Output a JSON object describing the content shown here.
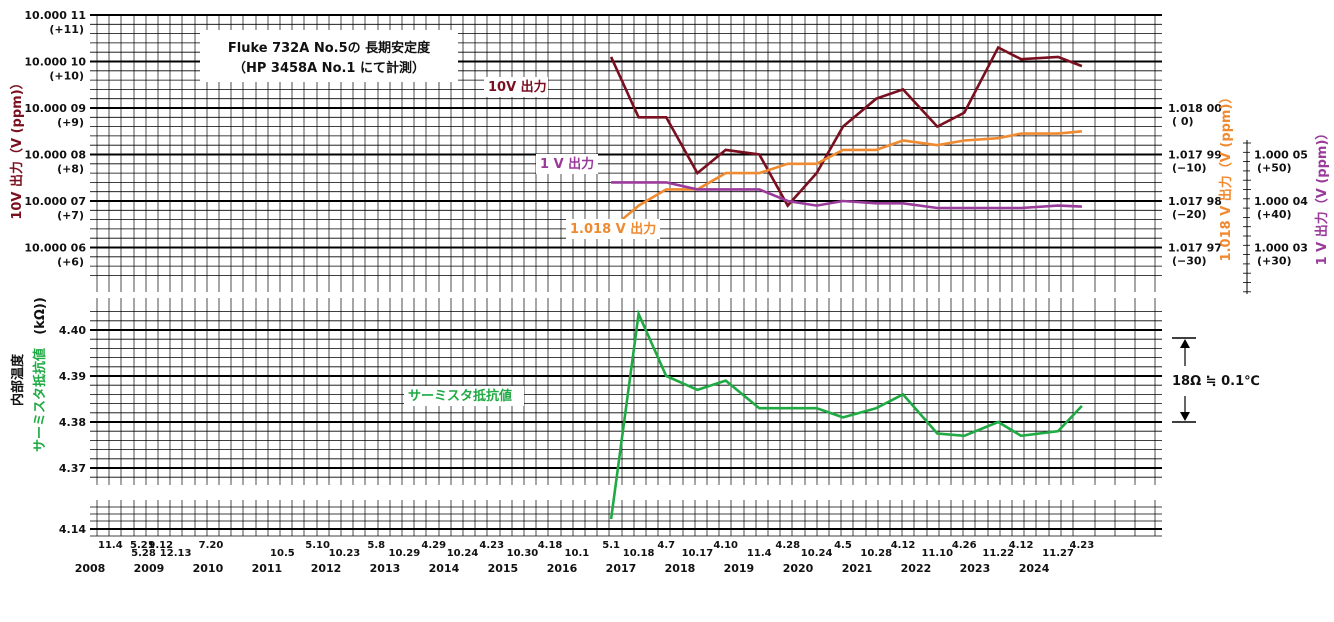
{
  "title": {
    "line1": "Fluke 732A  No.5の 長期安定度",
    "line2": "（HP 3458A No.1 にて計測）"
  },
  "colors": {
    "v10": "#7a0f1f",
    "v1018": "#f08a30",
    "v1": "#9a3a9a",
    "therm": "#1faa44",
    "grid": "#000000"
  },
  "labels": {
    "v10_series": "10V 出力",
    "v1_series": "1 V 出力",
    "v1018_series": "1.018 V 出力",
    "therm_series": "サーミスタ抵抗値",
    "left_axis_v10": "10V 出力（V (ppm)）",
    "left_axis_temp": "内部温度",
    "left_axis_therm": "サーミスタ抵抗値",
    "therm_unit": "(kΩ))",
    "right_axis_v1018": "1.018 V 出力（V (ppm)）",
    "right_axis_v1": "1 V 出力（V (ppm)）",
    "resolution_note": "18Ω ≒ 0.1℃"
  },
  "chart_data": [
    {
      "type": "line",
      "name": "voltage",
      "left_ticks": [
        {
          "v": 11,
          "main": "10.000 11",
          "sub": "(+11)"
        },
        {
          "v": 10,
          "main": "10.000 10",
          "sub": "(+10)"
        },
        {
          "v": 9,
          "main": "10.000 09",
          "sub": "(+9)"
        },
        {
          "v": 8,
          "main": "10.000 08",
          "sub": "(+8)"
        },
        {
          "v": 7,
          "main": "10.000 07",
          "sub": "(+7)"
        },
        {
          "v": 6,
          "main": "10.000 06",
          "sub": "(+6)"
        }
      ],
      "right_ticks_1018": [
        {
          "v": 9,
          "main": "1.018 00",
          "sub": "(    0)"
        },
        {
          "v": 8,
          "main": "1.017 99",
          "sub": "(−10)"
        },
        {
          "v": 7,
          "main": "1.017 98",
          "sub": "(−20)"
        },
        {
          "v": 6,
          "main": "1.017 97",
          "sub": "(−30)"
        }
      ],
      "right_ticks_1": [
        {
          "v": 8,
          "main": "1.000 05",
          "sub": "(+50)"
        },
        {
          "v": 7,
          "main": "1.000 04",
          "sub": "(+40)"
        },
        {
          "v": 6,
          "main": "1.000 03",
          "sub": "(+30)"
        }
      ],
      "series": [
        {
          "key": "v10",
          "x": [
            "2017-05-01",
            "2017-10-18",
            "2018-04-07",
            "2018-10-17",
            "2019-04-10",
            "2019-11-04",
            "2020-04-28",
            "2020-10-24",
            "2021-04-05",
            "2021-10-28",
            "2022-04-12",
            "2022-11-10",
            "2023-04-26",
            "2023-11-22",
            "2024-04-12",
            "2024-11-27",
            "2025-04-23"
          ],
          "y": [
            10.1,
            8.8,
            8.8,
            7.6,
            8.1,
            8.0,
            6.9,
            7.6,
            8.6,
            9.2,
            9.4,
            8.6,
            8.9,
            10.3,
            10.05,
            10.1,
            9.9
          ]
        },
        {
          "key": "v1018",
          "x": [
            "2017-05-01",
            "2017-10-18",
            "2018-04-07",
            "2018-10-17",
            "2019-04-10",
            "2019-11-04",
            "2020-04-28",
            "2020-10-24",
            "2021-04-05",
            "2021-10-28",
            "2022-04-12",
            "2022-11-10",
            "2023-04-26",
            "2023-11-22",
            "2024-04-12",
            "2024-11-27",
            "2025-04-23"
          ],
          "y": [
            6.4,
            6.9,
            7.25,
            7.25,
            7.6,
            7.6,
            7.8,
            7.8,
            8.1,
            8.1,
            8.3,
            8.2,
            8.3,
            8.35,
            8.45,
            8.45,
            8.5
          ]
        },
        {
          "key": "v1",
          "x": [
            "2017-05-01",
            "2017-10-18",
            "2018-04-07",
            "2018-10-17",
            "2019-04-10",
            "2019-11-04",
            "2020-04-28",
            "2020-10-24",
            "2021-04-05",
            "2021-10-28",
            "2022-04-12",
            "2022-11-10",
            "2023-04-26",
            "2023-11-22",
            "2024-04-12",
            "2024-11-27",
            "2025-04-23"
          ],
          "y": [
            7.4,
            7.4,
            7.4,
            7.25,
            7.25,
            7.25,
            7.0,
            6.9,
            7.0,
            6.95,
            6.95,
            6.85,
            6.85,
            6.85,
            6.85,
            6.9,
            6.88
          ]
        }
      ]
    },
    {
      "type": "line",
      "name": "thermistor",
      "ticks": [
        {
          "v": 4.4,
          "label": "4.40"
        },
        {
          "v": 4.39,
          "label": "4.39"
        },
        {
          "v": 4.38,
          "label": "4.38"
        },
        {
          "v": 4.37,
          "label": "4.37"
        }
      ],
      "low_tick": {
        "v": 4.14,
        "label": "4.14"
      },
      "series": [
        {
          "key": "therm",
          "x": [
            "2017-05-01",
            "2017-10-18",
            "2018-04-07",
            "2018-10-17",
            "2019-04-10",
            "2019-11-04",
            "2020-04-28",
            "2020-10-24",
            "2021-04-05",
            "2021-10-28",
            "2022-04-12",
            "2022-11-10",
            "2023-04-26",
            "2023-11-22",
            "2024-04-12",
            "2024-11-27",
            "2025-04-23"
          ],
          "y": [
            4.143,
            4.4035,
            4.39,
            4.387,
            4.389,
            4.383,
            4.383,
            4.383,
            4.381,
            4.383,
            4.386,
            4.3775,
            4.377,
            4.38,
            4.377,
            4.378,
            4.3835
          ]
        }
      ]
    }
  ],
  "x_axis": {
    "dates": [
      {
        "label": "11.4",
        "d": "2008-11-04",
        "row": 0
      },
      {
        "label": "5.21",
        "d": "2009-05-21",
        "row": 0
      },
      {
        "label": "5.28",
        "d": "2009-05-28",
        "row": 1
      },
      {
        "label": "9.12",
        "d": "2009-09-12",
        "row": 0
      },
      {
        "label": "12.13",
        "d": "2009-12-13",
        "row": 1
      },
      {
        "label": "7.20",
        "d": "2010-07-20",
        "row": 0
      },
      {
        "label": "10.5",
        "d": "2011-10-05",
        "row": 1
      },
      {
        "label": "5.10",
        "d": "2012-05-10",
        "row": 0
      },
      {
        "label": "10.23",
        "d": "2012-10-23",
        "row": 1
      },
      {
        "label": "5.8",
        "d": "2013-05-08",
        "row": 0
      },
      {
        "label": "10.29",
        "d": "2013-10-29",
        "row": 1
      },
      {
        "label": "4.29",
        "d": "2014-04-29",
        "row": 0
      },
      {
        "label": "10.24",
        "d": "2014-10-24",
        "row": 1
      },
      {
        "label": "4.23",
        "d": "2015-04-23",
        "row": 0
      },
      {
        "label": "10.30",
        "d": "2015-10-30",
        "row": 1
      },
      {
        "label": "4.18",
        "d": "2016-04-18",
        "row": 0
      },
      {
        "label": "10.1",
        "d": "2016-10-01",
        "row": 1
      },
      {
        "label": "5.1",
        "d": "2017-05-01",
        "row": 0
      },
      {
        "label": "10.18",
        "d": "2017-10-18",
        "row": 1
      },
      {
        "label": "4.7",
        "d": "2018-04-07",
        "row": 0
      },
      {
        "label": "10.17",
        "d": "2018-10-17",
        "row": 1
      },
      {
        "label": "4.10",
        "d": "2019-04-10",
        "row": 0
      },
      {
        "label": "11.4",
        "d": "2019-11-04",
        "row": 1
      },
      {
        "label": "4.28",
        "d": "2020-04-28",
        "row": 0
      },
      {
        "label": "10.24",
        "d": "2020-10-24",
        "row": 1
      },
      {
        "label": "4.5",
        "d": "2021-04-05",
        "row": 0
      },
      {
        "label": "10.28",
        "d": "2021-10-28",
        "row": 1
      },
      {
        "label": "4.12",
        "d": "2022-04-12",
        "row": 0
      },
      {
        "label": "11.10",
        "d": "2022-11-10",
        "row": 1
      },
      {
        "label": "4.26",
        "d": "2023-04-26",
        "row": 0
      },
      {
        "label": "11.22",
        "d": "2023-11-22",
        "row": 1
      },
      {
        "label": "4.12",
        "d": "2024-04-12",
        "row": 0
      },
      {
        "label": "11.27",
        "d": "2024-11-27",
        "row": 1
      },
      {
        "label": "4.23",
        "d": "2025-04-23",
        "row": 0
      }
    ],
    "years": [
      "2008",
      "2009",
      "2010",
      "2011",
      "2012",
      "2013",
      "2014",
      "2015",
      "2016",
      "2017",
      "2018",
      "2019",
      "2020",
      "2021",
      "2022",
      "2023",
      "2024"
    ]
  }
}
